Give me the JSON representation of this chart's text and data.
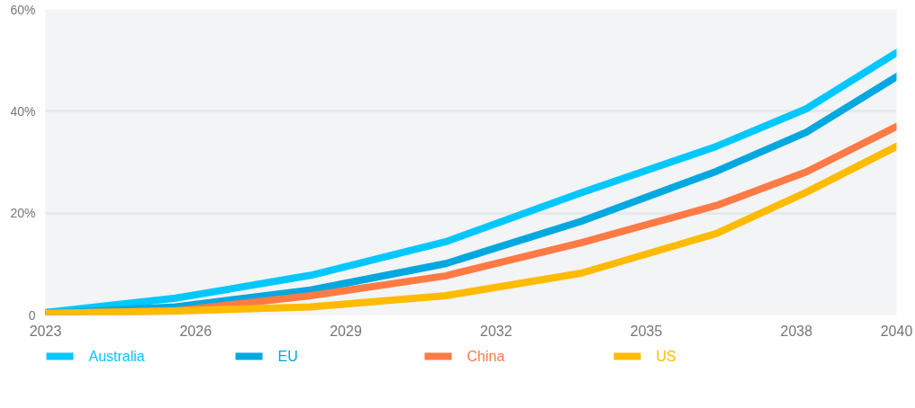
{
  "chart_data": {
    "type": "line",
    "x": [
      2023,
      2025.6,
      2028.3,
      2031,
      2033.7,
      2036.4,
      2038.2,
      2040
    ],
    "xlim": [
      2023,
      2040
    ],
    "xticks": [
      2023,
      2026,
      2029,
      2032,
      2035,
      2038,
      2040
    ],
    "ylim": [
      0,
      60
    ],
    "yticks": [
      0,
      {
        "value": 20,
        "label": "20%"
      },
      {
        "value": 40,
        "label": "40%"
      },
      {
        "value": 60,
        "label": "60%"
      }
    ],
    "grid": "y",
    "legend": "bottom",
    "line_style": "solid",
    "marker": "none",
    "series": [
      {
        "name": "Australia",
        "color": "#00c8ff",
        "values": [
          0.5,
          3.3,
          7.8,
          14.4,
          24.0,
          33.1,
          40.5,
          51.5
        ]
      },
      {
        "name": "EU",
        "color": "#00a8e0",
        "values": [
          0.3,
          1.6,
          4.9,
          10.1,
          18.4,
          28.2,
          35.9,
          46.8
        ]
      },
      {
        "name": "China",
        "color": "#ff7a45",
        "values": [
          0.3,
          0.8,
          3.8,
          7.7,
          14.2,
          21.5,
          28.1,
          37.0
        ]
      },
      {
        "name": "US",
        "color": "#ffbb00",
        "values": [
          0.3,
          0.8,
          1.6,
          3.8,
          8.2,
          16.0,
          24.1,
          33.1
        ]
      }
    ]
  }
}
